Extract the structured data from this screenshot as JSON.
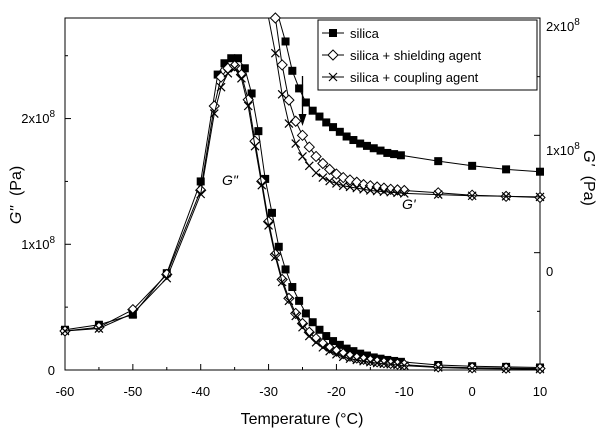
{
  "chart_data": {
    "type": "line",
    "xlabel": "Temperature (°C)",
    "xlim": [
      -60,
      10
    ],
    "x_ticks": [
      -60,
      -50,
      -40,
      -30,
      -20,
      -10,
      0,
      10
    ],
    "x_tick_labels": [
      "-60",
      "-50",
      "-40",
      "-30",
      "-20",
      "-10",
      "0",
      "10"
    ],
    "left_axis": {
      "label_main": "G\"",
      "label_unit": "(Pa)",
      "ylim": [
        0,
        280000000
      ],
      "tick_values": [
        0,
        100000000,
        200000000
      ],
      "tick_labels": [
        {
          "base": "0",
          "exp": ""
        },
        {
          "base": "1x10",
          "exp": "8"
        },
        {
          "base": "2x10",
          "exp": "8"
        }
      ]
    },
    "right_axis": {
      "label_main": "G'",
      "label_unit": "(Pa)",
      "ylim": [
        -100000000,
        200000000
      ],
      "tick_values": [
        0,
        100000000,
        200000000
      ],
      "tick_labels": [
        {
          "base": "0",
          "exp": ""
        },
        {
          "base": "1x10",
          "exp": "8"
        },
        {
          "base": "2x10",
          "exp": "8"
        }
      ]
    },
    "annotations": {
      "g_double_prime": "G\"",
      "g_prime": "G'",
      "arrow_x": -25
    },
    "legend_position": "top-right",
    "series": [
      {
        "name": "silica",
        "marker": "filled-square",
        "G_double_prime": {
          "x": [
            -60,
            -55,
            -50,
            -45,
            -40,
            -37.5,
            -36.5,
            -35.5,
            -34.5,
            -33.5,
            -32.5,
            -31.5,
            -30.5,
            -29.5,
            -28.5,
            -27.5,
            -26.5,
            -25.5,
            -24.5,
            -23.5,
            -22.5,
            -21.5,
            -20.5,
            -19.5,
            -18.5,
            -17.5,
            -16.5,
            -15.5,
            -14.5,
            -13.5,
            -12.5,
            -11.5,
            -10.5,
            -5,
            0,
            5,
            10
          ],
          "y": [
            32000000,
            36000000,
            44000000,
            77000000,
            150000000,
            235000000,
            244000000,
            248000000,
            248000000,
            240000000,
            220000000,
            190000000,
            152000000,
            125000000,
            98000000,
            80000000,
            66000000,
            55000000,
            45000000,
            38000000,
            32000000,
            27000000,
            23000000,
            20000000,
            17000000,
            15000000,
            13000000,
            11500000,
            10000000,
            9000000,
            8000000,
            7200000,
            6500000,
            4000000,
            3000000,
            2500000,
            2000000
          ]
        },
        "G_prime": {
          "x": [
            -29.5,
            -28.5,
            -27.5,
            -26.5,
            -25.5,
            -24.5,
            -23.5,
            -22.5,
            -21.5,
            -20.5,
            -19.5,
            -18.5,
            -17.5,
            -16.5,
            -15.5,
            -14.5,
            -13.5,
            -12.5,
            -11.5,
            -10.5,
            -5,
            0,
            5,
            10
          ],
          "y": [
            250000000,
            215000000,
            180000000,
            155000000,
            140000000,
            128000000,
            121000000,
            116000000,
            111000000,
            107000000,
            103000000,
            99000000,
            96000000,
            93000000,
            91000000,
            89000000,
            87000000,
            85000000,
            84000000,
            83000000,
            78000000,
            74000000,
            71000000,
            69000000
          ]
        }
      },
      {
        "name": "silica + shielding agent",
        "marker": "open-diamond",
        "G_double_prime": {
          "x": [
            -60,
            -55,
            -50,
            -45,
            -40,
            -38,
            -37,
            -36,
            -35,
            -34,
            -33,
            -32,
            -31,
            -30,
            -29,
            -28,
            -27,
            -26,
            -25,
            -24,
            -23,
            -22,
            -21,
            -20,
            -19,
            -18,
            -17,
            -16,
            -15,
            -14,
            -13,
            -12,
            -11,
            -10,
            -5,
            0,
            5,
            10
          ],
          "y": [
            31000000,
            34000000,
            48000000,
            76000000,
            143000000,
            210000000,
            233000000,
            240000000,
            242000000,
            235000000,
            215000000,
            182000000,
            150000000,
            118000000,
            92000000,
            72000000,
            57000000,
            45000000,
            37000000,
            30000000,
            25000000,
            21000000,
            17500000,
            15000000,
            13000000,
            11000000,
            9500000,
            8500000,
            7500000,
            6500000,
            5800000,
            5200000,
            4700000,
            4200000,
            2500000,
            1800000,
            1500000,
            1200000
          ]
        },
        "G_prime": {
          "x": [
            -30,
            -29,
            -28,
            -27,
            -26,
            -25,
            -24,
            -23,
            -22,
            -21,
            -20,
            -19,
            -18,
            -17,
            -16,
            -15,
            -14,
            -13,
            -12,
            -11,
            -10,
            -5,
            0,
            5,
            10
          ],
          "y": [
            250000000,
            200000000,
            160000000,
            130000000,
            112000000,
            100000000,
            90000000,
            82000000,
            76000000,
            71000000,
            67000000,
            64000000,
            62000000,
            60000000,
            58000000,
            57000000,
            56000000,
            55000000,
            54000000,
            53500000,
            53000000,
            51000000,
            49000000,
            48000000,
            47000000
          ]
        }
      },
      {
        "name": "silica + coupling agent",
        "marker": "x-cross",
        "G_double_prime": {
          "x": [
            -60,
            -55,
            -50,
            -45,
            -40,
            -38,
            -37,
            -36,
            -35,
            -34,
            -33,
            -32,
            -31,
            -30,
            -29,
            -28,
            -27,
            -26,
            -25,
            -24,
            -23,
            -22,
            -21,
            -20,
            -19,
            -18,
            -17,
            -16,
            -15,
            -14,
            -13,
            -12,
            -11,
            -10,
            -5,
            0,
            5,
            10
          ],
          "y": [
            31000000,
            33000000,
            45000000,
            73000000,
            140000000,
            204000000,
            225000000,
            236000000,
            240000000,
            232000000,
            210000000,
            178000000,
            147000000,
            115000000,
            90000000,
            70000000,
            55000000,
            43000000,
            34000000,
            27000000,
            22000000,
            18000000,
            15000000,
            12500000,
            10500000,
            9000000,
            8000000,
            7000000,
            6200000,
            5500000,
            5000000,
            4500000,
            4000000,
            3500000,
            2000000,
            1200000,
            900000,
            700000
          ]
        },
        "G_prime": {
          "x": [
            -31,
            -30,
            -29,
            -28,
            -27,
            -26,
            -25,
            -24,
            -23,
            -22,
            -21,
            -20,
            -19,
            -18,
            -17,
            -16,
            -15,
            -14,
            -13,
            -12,
            -11,
            -10,
            -5,
            0,
            5,
            10
          ],
          "y": [
            250000000,
            215000000,
            170000000,
            135000000,
            110000000,
            93000000,
            82000000,
            74000000,
            68000000,
            64000000,
            61000000,
            59000000,
            57000000,
            56000000,
            55000000,
            54000000,
            53000000,
            52500000,
            52000000,
            51500000,
            51000000,
            50500000,
            49500000,
            48500000,
            48000000,
            47500000
          ]
        }
      }
    ]
  }
}
